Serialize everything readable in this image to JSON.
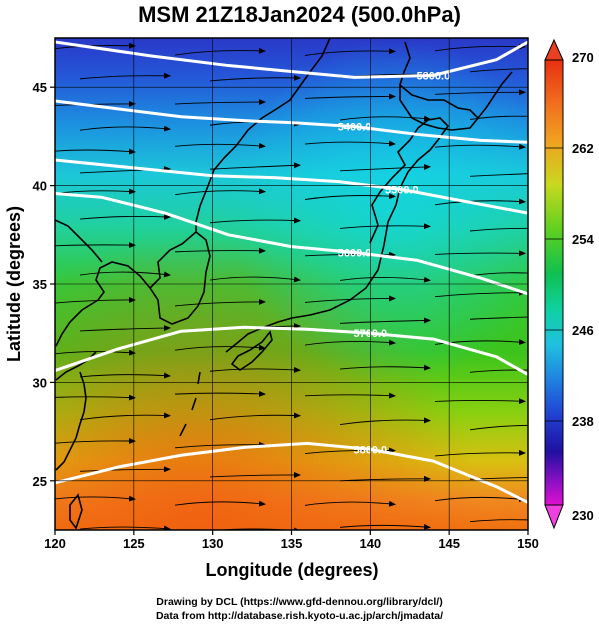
{
  "title": "MSM 21Z18Jan2024 (500.0hPa)",
  "footer": {
    "line1": "Drawing by DCL (https://www.gfd-dennou.org/library/dcl/)",
    "line2": "Data from http://database.rish.kyoto-u.ac.jp/arch/jmadata/"
  },
  "map": {
    "xlabel": "Longitude (degrees)",
    "ylabel": "Latitude (degrees)",
    "xlim": [
      120,
      150
    ],
    "ylim": [
      22.5,
      47.5
    ],
    "xticks": [
      120,
      125,
      130,
      135,
      140,
      145,
      150
    ],
    "yticks": [
      25,
      30,
      35,
      40,
      45
    ],
    "grid": true,
    "field": "temperature shading with wind streamlines",
    "contours": [
      {
        "label": "5300.0",
        "points": [
          [
            120,
            47.3
          ],
          [
            126,
            46.6
          ],
          [
            131,
            46.1
          ],
          [
            135,
            45.8
          ],
          [
            139,
            45.5
          ],
          [
            144,
            45.6
          ],
          [
            148,
            46.4
          ],
          [
            150,
            47.3
          ]
        ]
      },
      {
        "label": "5400.0",
        "points": [
          [
            120,
            44.3
          ],
          [
            124,
            43.9
          ],
          [
            128,
            43.5
          ],
          [
            132,
            43.3
          ],
          [
            135,
            43.2
          ],
          [
            139,
            43.0
          ],
          [
            143,
            42.6
          ],
          [
            147,
            42.3
          ],
          [
            150,
            42.2
          ]
        ]
      },
      {
        "label": "5500.0",
        "points": [
          [
            120,
            41.3
          ],
          [
            125,
            40.9
          ],
          [
            130,
            40.5
          ],
          [
            134,
            40.4
          ],
          [
            138,
            40.2
          ],
          [
            142,
            39.8
          ],
          [
            146,
            39.2
          ],
          [
            150,
            38.6
          ]
        ]
      },
      {
        "label": "5600.0",
        "points": [
          [
            120,
            39.6
          ],
          [
            123,
            39.4
          ],
          [
            127,
            38.6
          ],
          [
            131,
            37.5
          ],
          [
            135,
            36.9
          ],
          [
            139,
            36.6
          ],
          [
            143,
            36.2
          ],
          [
            147,
            35.3
          ],
          [
            150,
            34.5
          ]
        ]
      },
      {
        "label": "5700.0",
        "points": [
          [
            120,
            30.6
          ],
          [
            124,
            31.7
          ],
          [
            128,
            32.6
          ],
          [
            132,
            32.8
          ],
          [
            136,
            32.7
          ],
          [
            140,
            32.5
          ],
          [
            144,
            32.2
          ],
          [
            148,
            31.3
          ],
          [
            150,
            30.4
          ]
        ]
      },
      {
        "label": "5800.0",
        "points": [
          [
            120,
            24.9
          ],
          [
            124,
            25.7
          ],
          [
            128,
            26.3
          ],
          [
            132,
            26.7
          ],
          [
            136,
            26.9
          ],
          [
            140,
            26.6
          ],
          [
            144,
            26.0
          ],
          [
            148,
            24.7
          ],
          [
            150,
            23.9
          ]
        ]
      }
    ]
  },
  "colorbar": {
    "ticks": [
      "270",
      "262",
      "254",
      "246",
      "238",
      "230"
    ],
    "colors": [
      "#e83010",
      "#f07020",
      "#f0a020",
      "#c8d820",
      "#60d020",
      "#10c050",
      "#10d0a0",
      "#20c0e0",
      "#2080e0",
      "#2040d0",
      "#2010a0",
      "#8010c0",
      "#e010d0"
    ]
  }
}
